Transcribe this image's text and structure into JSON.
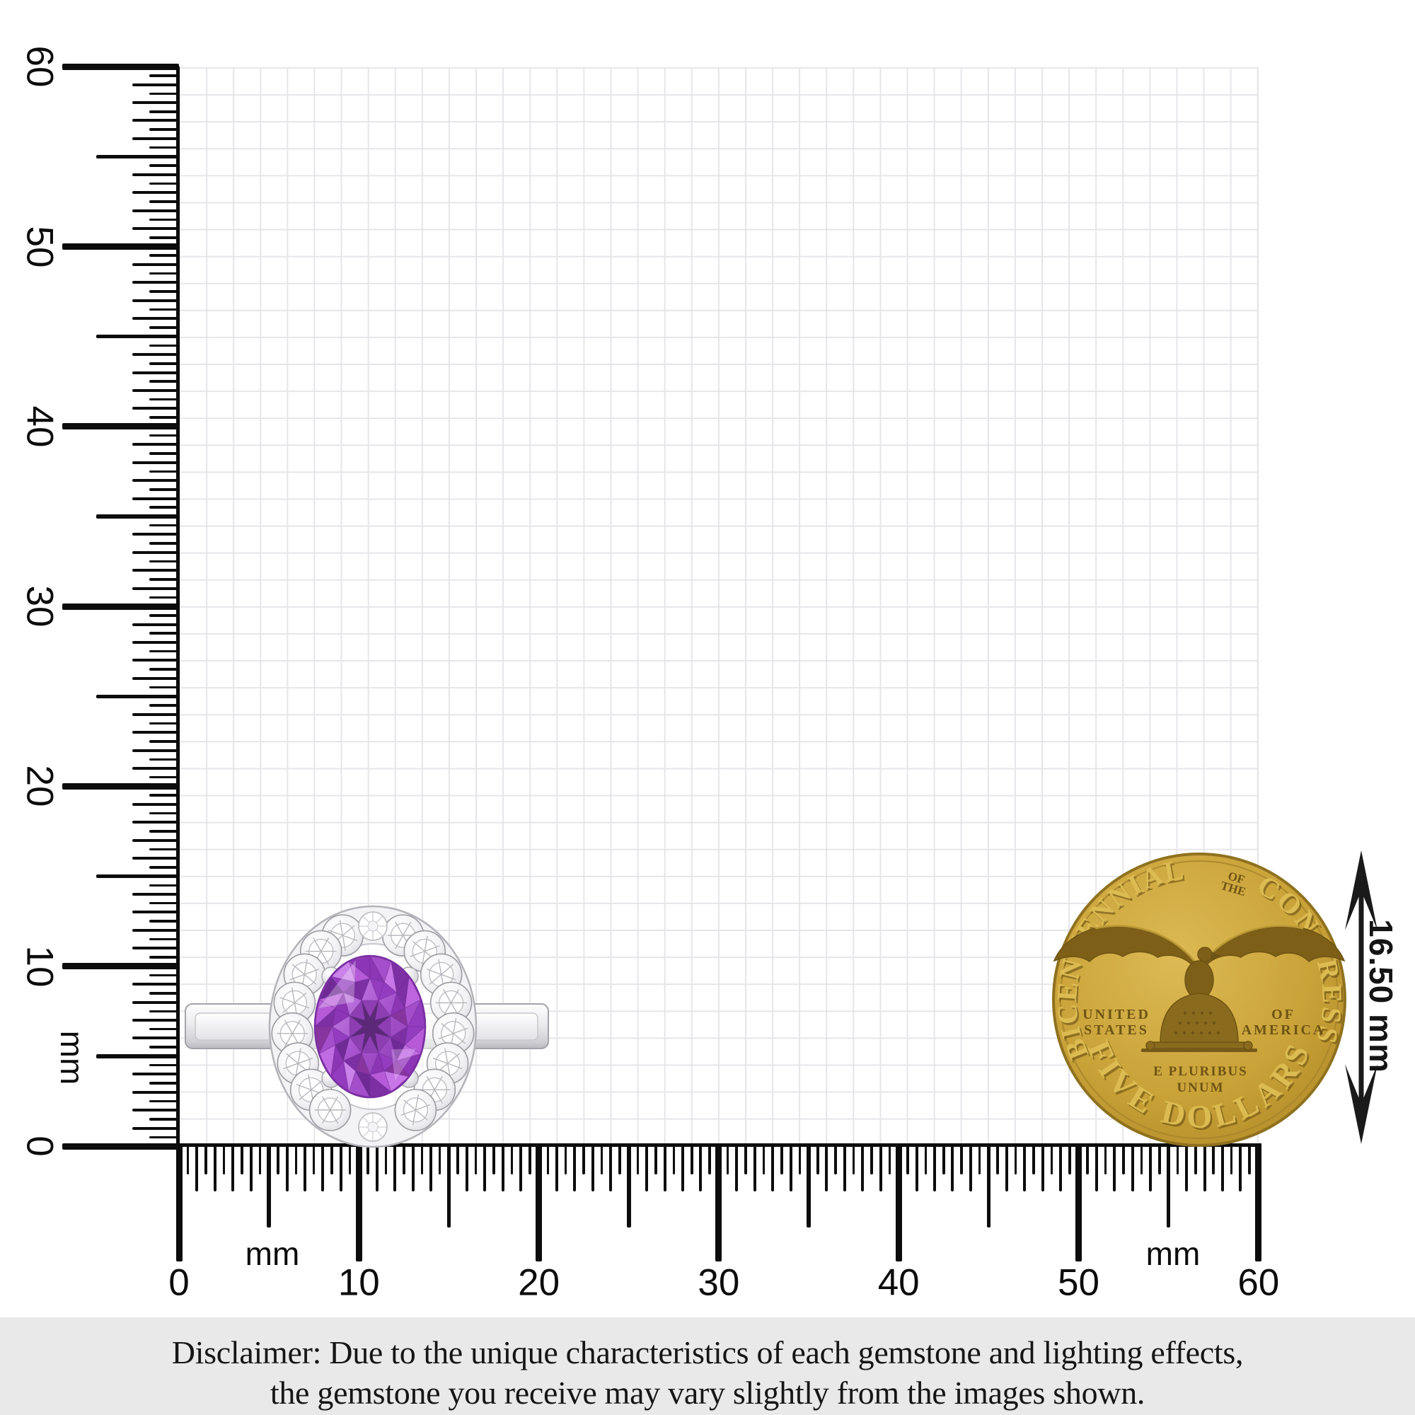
{
  "rulers": {
    "unit": "mm",
    "left": {
      "labels": [
        "60",
        "50",
        "40",
        "30",
        "20",
        "10",
        "0"
      ],
      "unit_label": "mm"
    },
    "bottom": {
      "labels": [
        "0",
        "10",
        "20",
        "30",
        "40",
        "50",
        "60"
      ],
      "unit_left": "mm",
      "unit_right": "mm"
    },
    "range_mm": {
      "min": 0,
      "max": 60,
      "label_step_mm": 10,
      "minor_step_mm": 0.5
    }
  },
  "coin": {
    "top_left": "BICENTENNIAL",
    "of_the_line1": "OF",
    "of_the_line2": "THE",
    "top_right": "CONGRESS",
    "mid_left_line1": "UNITED",
    "mid_left_line2": "STATES",
    "mid_right_line1": "OF",
    "mid_right_line2": "AMERICA",
    "motto_line1": "E PLURIBUS",
    "motto_line2": "UNUM",
    "bottom": "FIVE DOLLARS"
  },
  "measurement": {
    "coin_diameter_label": "16.50 mm"
  },
  "disclaimer": {
    "line1": "Disclaimer: Due to the unique characteristics of each gemstone and lighting effects,",
    "line2": "the gemstone you receive may vary slightly from the images shown."
  },
  "colors": {
    "tick": "#0c0c0c",
    "grid_line": "#e6e6e9",
    "amethyst": "#a855cf",
    "amethyst_dark": "#5c2878",
    "amethyst_light": "#d79bf0",
    "silver": "#ececef",
    "silver_dark": "#a3a3aa",
    "gold": "#c49d35",
    "gold_dark": "#6e5413",
    "gold_light": "#e6c55f",
    "disclaimer_bg": "#e9e9e9"
  }
}
